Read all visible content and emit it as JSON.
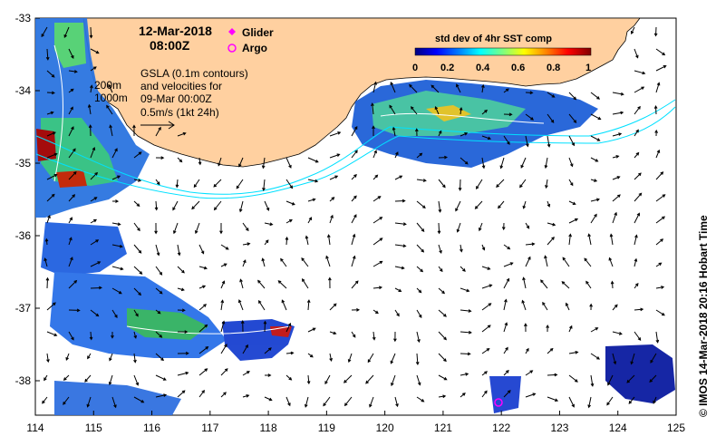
{
  "date": "12-Mar-2018",
  "time": "08:00Z",
  "legend": {
    "glider": "Glider",
    "argo": "Argo",
    "glider_color": "#ff00ff",
    "argo_color": "#ff00ff"
  },
  "gsla_note": [
    "GSLA (0.1m contours)",
    "and velocities for",
    "09-Mar 00:00Z",
    "0.5m/s (1kt 24h)"
  ],
  "isobaths": [
    "200m",
    "1000m"
  ],
  "colorbar": {
    "title": "std dev of 4hr SST comp",
    "ticks": [
      "0",
      "0.2",
      "0.4",
      "0.6",
      "0.8",
      "1"
    ],
    "colors": [
      "#00007f",
      "#0000ff",
      "#007fff",
      "#00ffff",
      "#7fff7f",
      "#ffff00",
      "#ff7f00",
      "#ff0000",
      "#7f0000"
    ]
  },
  "credit": "© IMOS 14-Mar-2018 20:16 Hobart Time",
  "axes": {
    "x_ticks": [
      "114",
      "115",
      "116",
      "117",
      "118",
      "119",
      "120",
      "121",
      "122",
      "123",
      "124",
      "125"
    ],
    "y_ticks": [
      "-33",
      "-34",
      "-35",
      "-36",
      "-37",
      "-38"
    ]
  },
  "colors": {
    "land": "#ffd0a0",
    "isobath": "#00e0ff",
    "arrow": "#000000"
  }
}
